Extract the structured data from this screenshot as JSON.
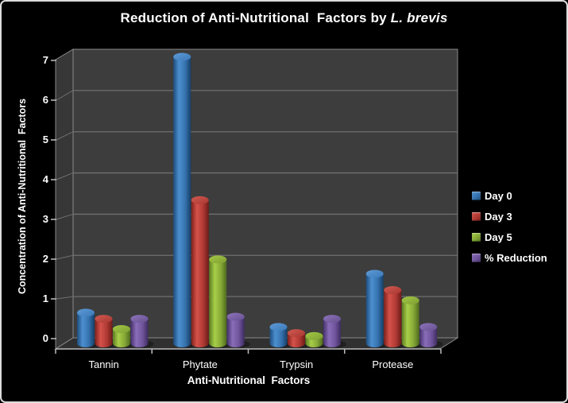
{
  "title": {
    "main": "Reduction of Anti-Nutritional  Factors by ",
    "italic": "L. brevis"
  },
  "chart_data": {
    "type": "bar",
    "variant": "3d-cylinder",
    "title": "Reduction of Anti-Nutritional Factors by L. brevis",
    "categories": [
      "Tannin",
      "Phytate",
      "Trypsin",
      "Protease"
    ],
    "series": [
      {
        "name": "Day 0",
        "color": "#3b7ec0",
        "values": [
          0.75,
          7.0,
          0.4,
          1.7
        ],
        "shades": {
          "edge": "#1e4d7c",
          "bright": "#4c8fd0",
          "mid": "#3572ae",
          "edge2": "#173f66",
          "capLight": "#5e9ad6",
          "capDark": "#3a79b8"
        }
      },
      {
        "name": "Day 3",
        "color": "#c0403a",
        "values": [
          0.6,
          3.5,
          0.25,
          1.3
        ],
        "shades": {
          "edge": "#7e201c",
          "bright": "#d5524a",
          "mid": "#b03a34",
          "edge2": "#6e1b18",
          "capLight": "#d05a52",
          "capDark": "#a93731"
        }
      },
      {
        "name": "Day 5",
        "color": "#8fb33a",
        "values": [
          0.35,
          2.05,
          0.18,
          1.05
        ],
        "shades": {
          "edge": "#5a7a22",
          "bright": "#a8cf49",
          "mid": "#85a836",
          "edge2": "#4e6a1e",
          "capLight": "#a3c944",
          "capDark": "#7e9e33"
        }
      },
      {
        "name": "% Reduction",
        "color": "#7a5fa8",
        "values": [
          0.6,
          0.65,
          0.6,
          0.4
        ],
        "shades": {
          "edge": "#45316b",
          "bright": "#8a6db8",
          "mid": "#6f549c",
          "edge2": "#3d2b60",
          "capLight": "#8e74bb",
          "capDark": "#665090"
        }
      }
    ],
    "xlabel": "Anti-Nutritional  Factors",
    "ylabel": "Concentration of Anti-Nutritional  Factors",
    "ylim": [
      0,
      7
    ],
    "yticks": [
      0,
      1,
      2,
      3,
      4,
      5,
      6,
      7
    ],
    "grid": true,
    "legend_position": "right",
    "palette": {
      "background": "#000000",
      "back_wall": "#3d3d3d",
      "side_wall": "#373737",
      "floor": "#303030",
      "gridline": "#6f6f6f",
      "wall_edge": "#8a8a8a",
      "axis_line": "#bdbdbd",
      "text": "#ffffff"
    }
  }
}
